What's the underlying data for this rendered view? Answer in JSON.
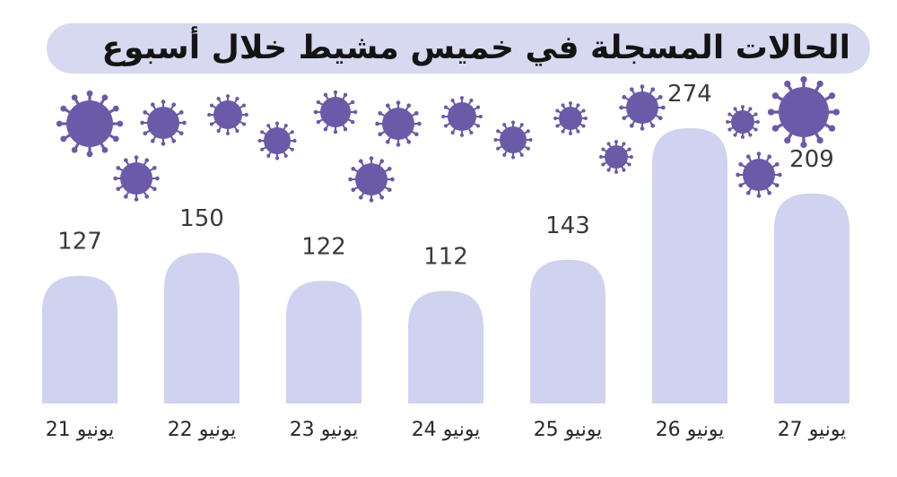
{
  "title": "الحالات المسجلة في خميس مشيط خلال أسبوع",
  "chart_data": {
    "type": "bar",
    "categories": [
      "21 يونيو",
      "22 يونيو",
      "23 يونيو",
      "24 يونيو",
      "25 يونيو",
      "26 يونيو",
      "27 يونيو"
    ],
    "values": [
      127,
      150,
      122,
      112,
      143,
      274,
      209
    ],
    "data_labels": [
      "127",
      "150",
      "122",
      "112",
      "143",
      "274",
      "209"
    ],
    "ylim": [
      0,
      300
    ],
    "grid": false,
    "legend": "none"
  },
  "colors": {
    "bar": "#cfd3ef",
    "title_background": "#d6d9ef",
    "virus": "#6a5aa8",
    "text": "#3a3a3a"
  },
  "decoration": {
    "icon": "virus-icon"
  }
}
